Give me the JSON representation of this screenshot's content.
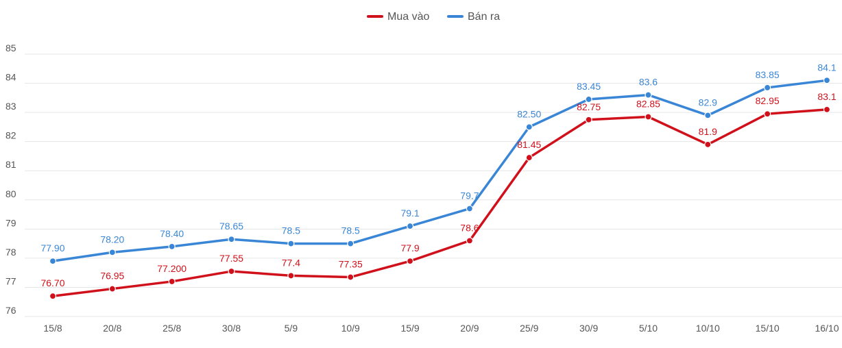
{
  "chart_data": {
    "type": "line",
    "title": "",
    "xlabel": "",
    "ylabel": "",
    "categories": [
      "15/8",
      "20/8",
      "25/8",
      "30/8",
      "5/9",
      "10/9",
      "15/9",
      "20/9",
      "25/9",
      "30/9",
      "5/10",
      "10/10",
      "15/10",
      "16/10"
    ],
    "ylim": [
      76,
      85
    ],
    "yticks": [
      "76",
      "77",
      "78",
      "79",
      "80",
      "81",
      "82",
      "83",
      "84",
      "85"
    ],
    "grid": true,
    "legend_position": "top-center",
    "series": [
      {
        "name": "Mua vào",
        "color": "#d0111b",
        "values": [
          76.7,
          76.95,
          77.2,
          77.55,
          77.4,
          77.35,
          77.9,
          78.6,
          81.45,
          82.75,
          82.85,
          81.9,
          82.95,
          83.1
        ],
        "labels": [
          "76.70",
          "76.95",
          "77.200",
          "77.55",
          "77.4",
          "77.35",
          "77.9",
          "78.6",
          "81.45",
          "82.75",
          "82.85",
          "81.9",
          "82.95",
          "83.1"
        ]
      },
      {
        "name": "Bán ra",
        "color": "#3a86d6",
        "values": [
          77.9,
          78.2,
          78.4,
          78.65,
          78.5,
          78.5,
          79.1,
          79.7,
          82.5,
          83.45,
          83.6,
          82.9,
          83.85,
          84.1
        ],
        "labels": [
          "77.90",
          "78.20",
          "78.40",
          "78.65",
          "78.5",
          "78.5",
          "79.1",
          "79.7",
          "82.50",
          "83.45",
          "83.6",
          "82.9",
          "83.85",
          "84.1"
        ]
      }
    ]
  }
}
